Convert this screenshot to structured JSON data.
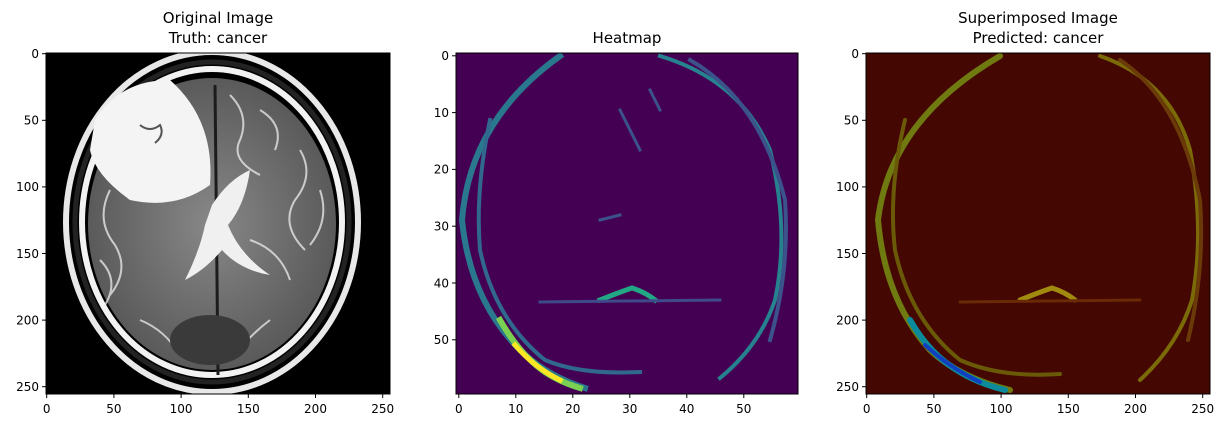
{
  "chart_data": [
    {
      "type": "image",
      "title_lines": [
        "Original Image",
        "Truth: cancer"
      ],
      "x_ticks": [
        0,
        50,
        100,
        150,
        200,
        250
      ],
      "y_ticks": [
        0,
        50,
        100,
        150,
        200,
        250
      ],
      "xlim": [
        -0.5,
        255.5
      ],
      "ylim": [
        255.5,
        -0.5
      ],
      "colormap": "gray",
      "content": "axial brain MRI slice"
    },
    {
      "type": "heatmap",
      "title_lines": [
        "Heatmap"
      ],
      "x_ticks": [
        0,
        10,
        20,
        30,
        40,
        50
      ],
      "y_ticks": [
        0,
        10,
        20,
        30,
        40,
        50
      ],
      "xlim": [
        -0.5,
        59.5
      ],
      "ylim": [
        59.5,
        -0.5
      ],
      "colormap": "viridis"
    },
    {
      "type": "image",
      "title_lines": [
        "Superimposed Image",
        "Predicted: cancer"
      ],
      "x_ticks": [
        0,
        50,
        100,
        150,
        200,
        250
      ],
      "y_ticks": [
        0,
        50,
        100,
        150,
        200,
        250
      ],
      "xlim": [
        -0.5,
        255.5
      ],
      "ylim": [
        255.5,
        -0.5
      ],
      "colormap": "jet overlay"
    }
  ]
}
